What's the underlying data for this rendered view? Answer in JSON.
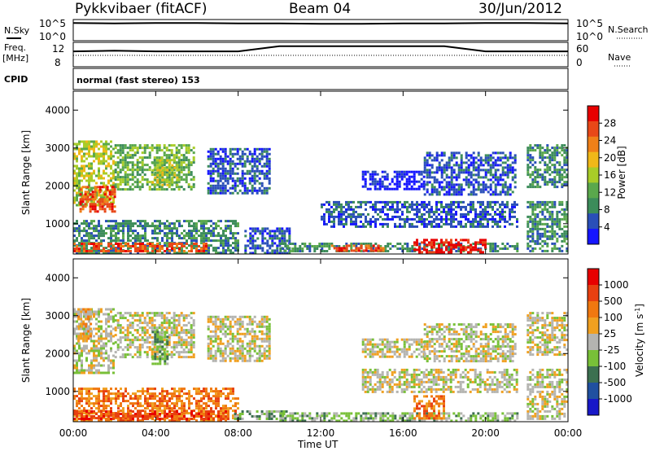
{
  "header": {
    "station": "Pykkvibaer (fitACF)",
    "beam": "Beam 04",
    "date": "30/Jun/2012"
  },
  "noise_panel": {
    "left_label": "N.Sky",
    "left_ticks": [
      "10^5",
      "10^0"
    ],
    "right_label": "N.Search",
    "right_ticks": [
      "10^5",
      "10^0"
    ]
  },
  "freq_panel": {
    "left_label_top": "Freq.",
    "left_label_bottom": "[MHz]",
    "left_ticks": [
      "12",
      "8"
    ],
    "right_label": "Nave",
    "right_ticks": [
      "60",
      "0"
    ]
  },
  "cpid": {
    "label": "CPID",
    "value": "normal (fast stereo) 153"
  },
  "colors": {
    "power_scale": [
      "#1515ff",
      "#2a4fb8",
      "#3c8c5a",
      "#5aa84c",
      "#a8cc28",
      "#f0b818",
      "#f08018",
      "#e84818",
      "#e80000"
    ],
    "velocity_scale": [
      "#1818c8",
      "#2050a0",
      "#3c7050",
      "#78c038",
      "#b4b4b0",
      "#f0a020",
      "#f07810",
      "#e84010",
      "#e80000"
    ]
  },
  "chart_data": [
    {
      "type": "line",
      "title": "N.Sky / N.Search",
      "ylim": [
        0,
        5
      ],
      "x": [
        "00:00",
        "02:00",
        "04:00",
        "06:00",
        "08:00",
        "10:00",
        "12:00",
        "14:00",
        "16:00",
        "18:00",
        "20:00",
        "22:00",
        "24:00"
      ],
      "series": [
        {
          "values": [
            4.2,
            4.1,
            4.2,
            4.2,
            4.1,
            4.1,
            4.0,
            4.0,
            4.1,
            4.1,
            4.2,
            4.2,
            4.1
          ]
        }
      ]
    },
    {
      "type": "line",
      "title": "Freq. / Nave",
      "ylim": [
        6,
        13
      ],
      "x": [
        "00:00",
        "02:00",
        "04:00",
        "06:00",
        "08:00",
        "10:00",
        "12:00",
        "14:00",
        "16:00",
        "18:00",
        "20:00",
        "22:00",
        "24:00"
      ],
      "series": [
        {
          "values": [
            10.4,
            10.6,
            10.4,
            10.4,
            10.4,
            11.9,
            11.9,
            11.9,
            11.9,
            11.9,
            10.4,
            10.4,
            10.4
          ]
        }
      ]
    },
    {
      "type": "heatmap",
      "ylabel": "Slant Range [km]",
      "colorbar_label": "Power [dB]",
      "colorbar_ticks": [
        "28",
        "24",
        "20",
        "16",
        "12",
        "8",
        "4"
      ],
      "ylim": [
        200,
        4500
      ],
      "yticks": [
        "4000",
        "3000",
        "2000",
        "1000"
      ],
      "x_hours_ticks": [
        "00:00",
        "04:00",
        "08:00",
        "12:00",
        "16:00",
        "20:00",
        "00:00"
      ],
      "xlim_hours": [
        0,
        24
      ],
      "regions": [
        {
          "t0": 0.0,
          "t1": 2.0,
          "r0": 1500,
          "r1": 3200,
          "level": 4
        },
        {
          "t0": 0.3,
          "t1": 2.0,
          "r0": 1300,
          "r1": 2000,
          "level": 7
        },
        {
          "t0": 2.0,
          "t1": 5.8,
          "r0": 1900,
          "r1": 3100,
          "level": 3
        },
        {
          "t0": 3.8,
          "t1": 5.0,
          "r0": 2000,
          "r1": 2700,
          "level": 4
        },
        {
          "t0": 0.0,
          "t1": 8.0,
          "r0": 250,
          "r1": 1100,
          "level": 2
        },
        {
          "t0": 0.0,
          "t1": 6.5,
          "r0": 250,
          "r1": 500,
          "level": 7
        },
        {
          "t0": 6.5,
          "t1": 9.5,
          "r0": 1800,
          "r1": 3000,
          "level": 1
        },
        {
          "t0": 8.3,
          "t1": 10.5,
          "r0": 250,
          "r1": 900,
          "level": 1
        },
        {
          "t0": 10.0,
          "t1": 21.5,
          "r0": 250,
          "r1": 500,
          "level": 2
        },
        {
          "t0": 12.5,
          "t1": 15.0,
          "r0": 300,
          "r1": 450,
          "level": 7
        },
        {
          "t0": 16.5,
          "t1": 20.0,
          "r0": 250,
          "r1": 600,
          "level": 8
        },
        {
          "t0": 12.0,
          "t1": 21.5,
          "r0": 900,
          "r1": 1600,
          "level": 1
        },
        {
          "t0": 14.0,
          "t1": 17.0,
          "r0": 1900,
          "r1": 2400,
          "level": 0
        },
        {
          "t0": 17.0,
          "t1": 21.5,
          "r0": 1800,
          "r1": 2900,
          "level": 1
        },
        {
          "t0": 22.0,
          "t1": 24.0,
          "r0": 2000,
          "r1": 3100,
          "level": 2
        },
        {
          "t0": 22.0,
          "t1": 24.0,
          "r0": 250,
          "r1": 1600,
          "level": 2
        }
      ]
    },
    {
      "type": "heatmap",
      "ylabel": "Slant Range [km]",
      "xlabel": "Time UT",
      "colorbar_label": "Velocity [m s^-1]",
      "colorbar_ticks": [
        "1000",
        "500",
        "100",
        "25",
        "-25",
        "-100",
        "-500",
        "-1000"
      ],
      "ylim": [
        200,
        4500
      ],
      "yticks": [
        "4000",
        "3000",
        "2000",
        "1000"
      ],
      "x_hours_ticks": [
        "00:00",
        "04:00",
        "08:00",
        "12:00",
        "16:00",
        "20:00",
        "00:00"
      ],
      "xlim_hours": [
        0,
        24
      ],
      "regions": [
        {
          "t0": 0.0,
          "t1": 2.0,
          "r0": 1500,
          "r1": 3200,
          "level": 4
        },
        {
          "t0": 0.2,
          "t1": 0.8,
          "r0": 2300,
          "r1": 3200,
          "level": 5
        },
        {
          "t0": 2.0,
          "t1": 5.8,
          "r0": 1900,
          "r1": 3100,
          "level": 4
        },
        {
          "t0": 3.8,
          "t1": 4.6,
          "r0": 1700,
          "r1": 2600,
          "level": 3
        },
        {
          "t0": 0.0,
          "t1": 8.0,
          "r0": 250,
          "r1": 1100,
          "level": 6
        },
        {
          "t0": 0.0,
          "t1": 7.5,
          "r0": 250,
          "r1": 500,
          "level": 7
        },
        {
          "t0": 6.5,
          "t1": 9.5,
          "r0": 1800,
          "r1": 3000,
          "level": 4
        },
        {
          "t0": 7.8,
          "t1": 10.5,
          "r0": 250,
          "r1": 500,
          "level": 3
        },
        {
          "t0": 10.0,
          "t1": 21.5,
          "r0": 250,
          "r1": 450,
          "level": 3
        },
        {
          "t0": 14.0,
          "t1": 21.5,
          "r0": 1000,
          "r1": 1600,
          "level": 4
        },
        {
          "t0": 14.0,
          "t1": 17.0,
          "r0": 1900,
          "r1": 2400,
          "level": 4
        },
        {
          "t0": 17.0,
          "t1": 21.5,
          "r0": 1800,
          "r1": 2800,
          "level": 4
        },
        {
          "t0": 16.5,
          "t1": 18.0,
          "r0": 300,
          "r1": 900,
          "level": 6
        },
        {
          "t0": 22.0,
          "t1": 24.0,
          "r0": 2000,
          "r1": 3100,
          "level": 4
        },
        {
          "t0": 22.0,
          "t1": 24.0,
          "r0": 250,
          "r1": 1600,
          "level": 4
        }
      ]
    }
  ]
}
